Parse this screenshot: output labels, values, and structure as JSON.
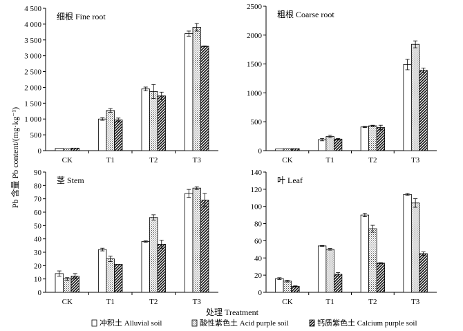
{
  "figure": {
    "y_axis_label": "Pb 含量 Pb content/(mg·kg⁻¹)",
    "x_axis_label": "处理 Treatment",
    "legend": [
      {
        "key": "alluvial",
        "label": "冲积土 Alluvial soil"
      },
      {
        "key": "acid",
        "label": "酸性紫色土 Acid purple soil"
      },
      {
        "key": "calcium",
        "label": "钙质紫色土 Calcium purple soil"
      }
    ]
  },
  "chart_data": [
    {
      "type": "bar",
      "title": "细根 Fine root",
      "categories": [
        "CK",
        "T1",
        "T2",
        "T3"
      ],
      "ylim": [
        0,
        4500
      ],
      "yticks": [
        0,
        500,
        1000,
        1500,
        2000,
        2500,
        3000,
        3500,
        4000,
        4500
      ],
      "tick_labels": [
        "0",
        "500",
        "1 000",
        "1 500",
        "2 000",
        "2 500",
        "3 000",
        "3 500",
        "4 000",
        "4 500"
      ],
      "series": [
        {
          "name": "冲积土 Alluvial soil",
          "values": [
            70,
            1000,
            1950,
            3700
          ],
          "errors": [
            0,
            40,
            60,
            80
          ]
        },
        {
          "name": "酸性紫色土 Acid purple soil",
          "values": [
            60,
            1270,
            1870,
            3900
          ],
          "errors": [
            0,
            60,
            220,
            120
          ]
        },
        {
          "name": "钙质紫色土 Calcium purple soil",
          "values": [
            80,
            970,
            1730,
            3300
          ],
          "errors": [
            0,
            60,
            120,
            10
          ]
        }
      ]
    },
    {
      "type": "bar",
      "title": "粗根 Coarse root",
      "categories": [
        "CK",
        "T1",
        "T2",
        "T3"
      ],
      "ylim": [
        0,
        2500
      ],
      "yticks": [
        0,
        500,
        1000,
        1500,
        2000,
        2500
      ],
      "tick_labels": [
        "0",
        "500",
        "1000",
        "1500",
        "2000",
        "2500"
      ],
      "series": [
        {
          "name": "冲积土 Alluvial soil",
          "values": [
            30,
            190,
            410,
            1490
          ],
          "errors": [
            0,
            20,
            10,
            90
          ]
        },
        {
          "name": "酸性紫色土 Acid purple soil",
          "values": [
            35,
            245,
            430,
            1840
          ],
          "errors": [
            0,
            25,
            10,
            60
          ]
        },
        {
          "name": "钙质紫色土 Calcium purple soil",
          "values": [
            35,
            200,
            400,
            1390
          ],
          "errors": [
            0,
            10,
            40,
            40
          ]
        }
      ]
    },
    {
      "type": "bar",
      "title": "茎 Stem",
      "categories": [
        "CK",
        "T1",
        "T2",
        "T3"
      ],
      "ylim": [
        0,
        90
      ],
      "yticks": [
        0,
        10,
        20,
        30,
        40,
        50,
        60,
        70,
        80,
        90
      ],
      "tick_labels": [
        "0",
        "10",
        "20",
        "30",
        "40",
        "50",
        "60",
        "70",
        "80",
        "90"
      ],
      "series": [
        {
          "name": "冲积土 Alluvial soil",
          "values": [
            14,
            32,
            38,
            74
          ],
          "errors": [
            2,
            1,
            0.5,
            3
          ]
        },
        {
          "name": "酸性紫色土 Acid purple soil",
          "values": [
            10,
            25,
            56,
            78
          ],
          "errors": [
            1,
            2,
            2,
            1
          ]
        },
        {
          "name": "钙质紫色土 Calcium purple soil",
          "values": [
            12,
            21,
            36,
            69
          ],
          "errors": [
            2,
            0,
            3,
            5
          ]
        }
      ]
    },
    {
      "type": "bar",
      "title": "叶 Leaf",
      "categories": [
        "CK",
        "T1",
        "T2",
        "T3"
      ],
      "ylim": [
        0,
        140
      ],
      "yticks": [
        0,
        20,
        40,
        60,
        80,
        100,
        120,
        140
      ],
      "tick_labels": [
        "0",
        "20",
        "40",
        "60",
        "80",
        "100",
        "120",
        "140"
      ],
      "series": [
        {
          "name": "冲积土 Alluvial soil",
          "values": [
            16,
            54,
            90,
            114
          ],
          "errors": [
            1,
            0.5,
            2,
            1
          ]
        },
        {
          "name": "酸性紫色土 Acid purple soil",
          "values": [
            13,
            50,
            74,
            104
          ],
          "errors": [
            1,
            1,
            4,
            5
          ]
        },
        {
          "name": "钙质紫色土 Calcium purple soil",
          "values": [
            7,
            21,
            34,
            45
          ],
          "errors": [
            0.5,
            2,
            0.5,
            2
          ]
        }
      ]
    }
  ]
}
